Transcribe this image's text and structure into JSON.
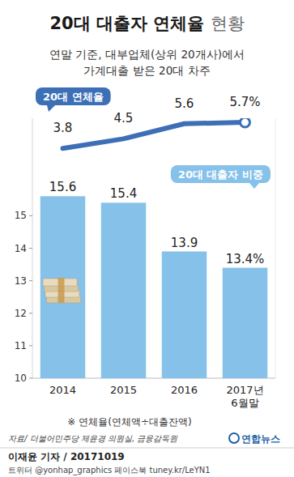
{
  "chart_data": {
    "type": "bar",
    "title": "20대 대출자 연체율 현황",
    "subtitle": [
      "연말 기준, 대부업체(상위 20개사)에서",
      "가계대출 받은 20대 차주"
    ],
    "categories": [
      "2014",
      "2015",
      "2016",
      "2017년 6월말"
    ],
    "series": [
      {
        "name": "20대 대출자 비중",
        "type": "bar",
        "color": "#86c1ea",
        "values": [
          15.6,
          15.4,
          13.9,
          13.4
        ],
        "value_labels": [
          "15.6",
          "15.4",
          "13.9",
          "13.4%"
        ]
      },
      {
        "name": "20대 연체율",
        "type": "line",
        "axis": "y2",
        "color": "#3d6fb6",
        "values": [
          3.8,
          4.5,
          5.6,
          5.7
        ],
        "value_labels": [
          "3.8",
          "4.5",
          "5.6",
          "5.7%"
        ]
      }
    ],
    "ylim": [
      10,
      18
    ],
    "yticks": [
      10,
      11,
      12,
      13,
      14,
      15
    ],
    "y2lim": [
      -13,
      6
    ],
    "y2ticks": [],
    "grid": false,
    "data_labels": true,
    "annotations": [
      "※ 연체율(연체액÷대출잔액)"
    ],
    "source": "자료/ 더불어민주당 제윤경 의원실, 금융감독원",
    "logo": "연합뉴스",
    "credit": "이재윤 기자 / 20171019",
    "footer": "트위터 @yonhap_graphics 페이스북 tuney.kr/LeYN1"
  }
}
